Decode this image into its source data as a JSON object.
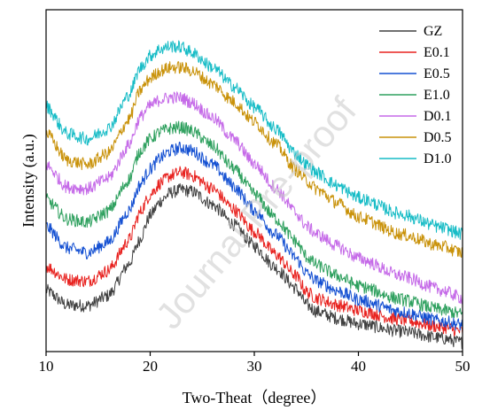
{
  "chart_data": {
    "type": "line",
    "title": "",
    "xlabel": "Two-Theat（degree）",
    "ylabel": "Intensity (a.u.)",
    "xlim": [
      10,
      50
    ],
    "x_ticks": [
      10,
      20,
      30,
      40,
      50
    ],
    "y_ticks": [],
    "grid": false,
    "legend_position": "top-right",
    "watermark": "Journal Pre-proof",
    "series": [
      {
        "name": "GZ",
        "color": "#404040",
        "points": [
          [
            10,
            0.095
          ],
          [
            12,
            0.067
          ],
          [
            14,
            0.066
          ],
          [
            16,
            0.085
          ],
          [
            18,
            0.145
          ],
          [
            19,
            0.19
          ],
          [
            20,
            0.235
          ],
          [
            21,
            0.262
          ],
          [
            22,
            0.278
          ],
          [
            23,
            0.283
          ],
          [
            24,
            0.28
          ],
          [
            26,
            0.255
          ],
          [
            28,
            0.218
          ],
          [
            30,
            0.178
          ],
          [
            32,
            0.138
          ],
          [
            34,
            0.098
          ],
          [
            35,
            0.068
          ],
          [
            36,
            0.055
          ],
          [
            38,
            0.042
          ],
          [
            40,
            0.032
          ],
          [
            44,
            0.018
          ],
          [
            48,
            0.005
          ],
          [
            50,
            -0.003
          ]
        ]
      },
      {
        "name": "E0.1",
        "color": "#e8221f",
        "points": [
          [
            10,
            0.14
          ],
          [
            12,
            0.115
          ],
          [
            14,
            0.112
          ],
          [
            16,
            0.132
          ],
          [
            18,
            0.19
          ],
          [
            19,
            0.24
          ],
          [
            20,
            0.274
          ],
          [
            21,
            0.296
          ],
          [
            22,
            0.31
          ],
          [
            23,
            0.316
          ],
          [
            24,
            0.31
          ],
          [
            26,
            0.285
          ],
          [
            28,
            0.247
          ],
          [
            30,
            0.205
          ],
          [
            32,
            0.163
          ],
          [
            34,
            0.122
          ],
          [
            35,
            0.092
          ],
          [
            36,
            0.08
          ],
          [
            38,
            0.067
          ],
          [
            40,
            0.057
          ],
          [
            44,
            0.04
          ],
          [
            48,
            0.026
          ],
          [
            50,
            0.018
          ]
        ]
      },
      {
        "name": "E0.5",
        "color": "#1450d2",
        "points": [
          [
            10,
            0.215
          ],
          [
            12,
            0.174
          ],
          [
            14,
            0.165
          ],
          [
            16,
            0.185
          ],
          [
            18,
            0.245
          ],
          [
            19,
            0.292
          ],
          [
            20,
            0.322
          ],
          [
            21,
            0.343
          ],
          [
            22,
            0.356
          ],
          [
            23,
            0.362
          ],
          [
            24,
            0.356
          ],
          [
            26,
            0.33
          ],
          [
            28,
            0.29
          ],
          [
            30,
            0.245
          ],
          [
            32,
            0.2
          ],
          [
            34,
            0.155
          ],
          [
            35,
            0.127
          ],
          [
            36,
            0.112
          ],
          [
            38,
            0.094
          ],
          [
            40,
            0.077
          ],
          [
            44,
            0.055
          ],
          [
            48,
            0.037
          ],
          [
            50,
            0.03
          ]
        ]
      },
      {
        "name": "E1.0",
        "color": "#2ea05e",
        "points": [
          [
            10,
            0.265
          ],
          [
            12,
            0.228
          ],
          [
            14,
            0.222
          ],
          [
            16,
            0.243
          ],
          [
            18,
            0.303
          ],
          [
            19,
            0.355
          ],
          [
            20,
            0.378
          ],
          [
            21,
            0.392
          ],
          [
            22,
            0.398
          ],
          [
            23,
            0.4
          ],
          [
            24,
            0.393
          ],
          [
            26,
            0.365
          ],
          [
            28,
            0.323
          ],
          [
            30,
            0.276
          ],
          [
            32,
            0.23
          ],
          [
            34,
            0.186
          ],
          [
            35,
            0.158
          ],
          [
            36,
            0.142
          ],
          [
            38,
            0.122
          ],
          [
            40,
            0.103
          ],
          [
            44,
            0.078
          ],
          [
            48,
            0.058
          ],
          [
            50,
            0.05
          ]
        ]
      },
      {
        "name": "D0.1",
        "color": "#c56ae8",
        "points": [
          [
            10,
            0.33
          ],
          [
            12,
            0.288
          ],
          [
            14,
            0.285
          ],
          [
            16,
            0.305
          ],
          [
            18,
            0.368
          ],
          [
            19,
            0.418
          ],
          [
            20,
            0.44
          ],
          [
            21,
            0.452
          ],
          [
            22,
            0.456
          ],
          [
            23,
            0.455
          ],
          [
            24,
            0.446
          ],
          [
            26,
            0.418
          ],
          [
            28,
            0.378
          ],
          [
            30,
            0.332
          ],
          [
            32,
            0.287
          ],
          [
            34,
            0.24
          ],
          [
            35,
            0.215
          ],
          [
            36,
            0.2
          ],
          [
            38,
            0.177
          ],
          [
            40,
            0.155
          ],
          [
            44,
            0.122
          ],
          [
            48,
            0.095
          ],
          [
            50,
            0.08
          ]
        ]
      },
      {
        "name": "D0.5",
        "color": "#c9920a",
        "points": [
          [
            10,
            0.39
          ],
          [
            12,
            0.338
          ],
          [
            14,
            0.33
          ],
          [
            16,
            0.352
          ],
          [
            18,
            0.416
          ],
          [
            19,
            0.468
          ],
          [
            20,
            0.492
          ],
          [
            21,
            0.506
          ],
          [
            22,
            0.512
          ],
          [
            23,
            0.512
          ],
          [
            24,
            0.506
          ],
          [
            26,
            0.481
          ],
          [
            28,
            0.448
          ],
          [
            30,
            0.41
          ],
          [
            32,
            0.37
          ],
          [
            34,
            0.32
          ],
          [
            35,
            0.3
          ],
          [
            36,
            0.284
          ],
          [
            38,
            0.258
          ],
          [
            40,
            0.232
          ],
          [
            44,
            0.2
          ],
          [
            48,
            0.177
          ],
          [
            50,
            0.165
          ]
        ]
      },
      {
        "name": "D1.0",
        "color": "#17bcc6",
        "points": [
          [
            10,
            0.44
          ],
          [
            12,
            0.388
          ],
          [
            14,
            0.378
          ],
          [
            16,
            0.398
          ],
          [
            18,
            0.462
          ],
          [
            19,
            0.51
          ],
          [
            20,
            0.534
          ],
          [
            21,
            0.547
          ],
          [
            22,
            0.552
          ],
          [
            23,
            0.55
          ],
          [
            24,
            0.54
          ],
          [
            26,
            0.512
          ],
          [
            28,
            0.477
          ],
          [
            30,
            0.438
          ],
          [
            32,
            0.398
          ],
          [
            34,
            0.35
          ],
          [
            35,
            0.33
          ],
          [
            36,
            0.315
          ],
          [
            38,
            0.29
          ],
          [
            40,
            0.268
          ],
          [
            44,
            0.238
          ],
          [
            48,
            0.212
          ],
          [
            50,
            0.2
          ]
        ]
      }
    ]
  }
}
